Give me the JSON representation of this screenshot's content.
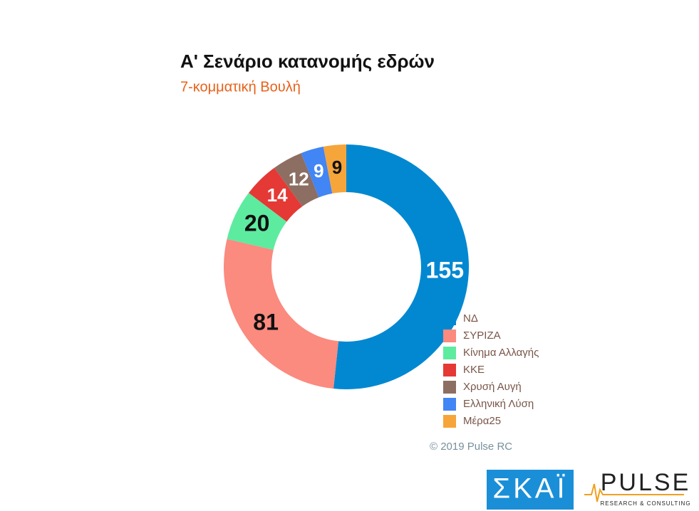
{
  "chart_data": {
    "type": "donut",
    "title": "Α' Σενάριο κατανομής εδρών",
    "subtitle": "7-κομματική Βουλή",
    "categories": [
      "ΝΔ",
      "ΣΥΡΙΖΑ",
      "Κίνημα Αλλαγής",
      "ΚΚΕ",
      "Χρυσή Αυγή",
      "Ελληνική Λύση",
      "Μέρα25"
    ],
    "values": [
      155,
      81,
      20,
      14,
      12,
      9,
      9
    ],
    "colors": [
      "#0288d1",
      "#fb8a7f",
      "#5deba0",
      "#e53935",
      "#8d6e63",
      "#4285f4",
      "#f5a53a"
    ],
    "label_colors": [
      "#ffffff",
      "#111111",
      "#111111",
      "#ffffff",
      "#ffffff",
      "#ffffff",
      "#111111"
    ],
    "source": "© 2019 Pulse RC"
  },
  "footer": {
    "logo_left": "ΣΚΑΪ",
    "logo_right": "PULSE",
    "logo_right_sub": "RESEARCH & CONSULTING"
  }
}
